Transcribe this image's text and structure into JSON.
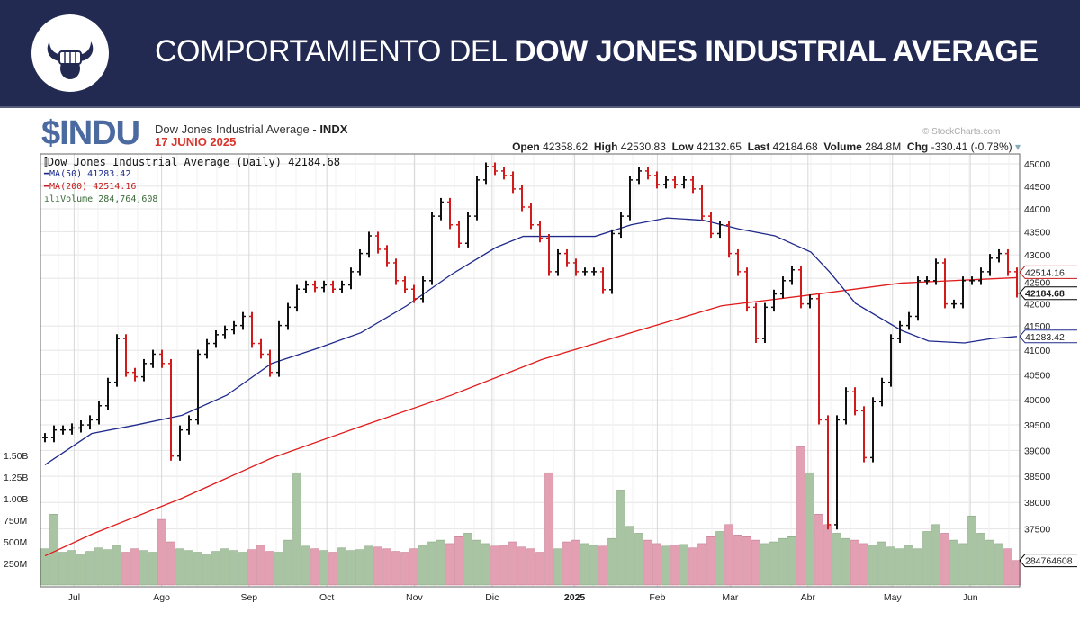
{
  "header": {
    "title_light": "COMPORTAMIENTO DEL ",
    "title_bold": "DOW JONES INDUSTRIAL AVERAGE"
  },
  "symbol": "$INDU",
  "name": "Dow Jones Industrial Average - ",
  "exchange": "INDX",
  "date": "17 JUNIO 2025",
  "copyright": "© StockCharts.com",
  "quote": {
    "open_label": "Open",
    "open": "42358.62",
    "high_label": "High",
    "high": "42530.83",
    "low_label": "Low",
    "low": "42132.65",
    "last_label": "Last",
    "last": "42184.68",
    "volume_label": "Volume",
    "volume": "284.8M",
    "chg_label": "Chg",
    "chg": "-330.41 (-0.78%)"
  },
  "legend": {
    "main": "Dow Jones Industrial Average (Daily) 42184.68",
    "ma50": "MA(50) 41283.42",
    "ma200": "MA(200) 42514.16",
    "volume": "Volume 284,764,608"
  },
  "colors": {
    "header": "#232a52",
    "up": "#111111",
    "down": "#d11a1a",
    "ma50": "#1f2a8c",
    "ma200": "#e01b1b",
    "vol_up": "#a9c4a2",
    "vol_down": "#e3a0b3"
  },
  "chart_data": {
    "type": "ohlc",
    "title": "Dow Jones Industrial Average (Daily)",
    "y_scale": "log",
    "ylim": [
      37500,
      45000
    ],
    "y_ticks": [
      45000,
      44500,
      44000,
      43500,
      43000,
      42500,
      42000,
      41500,
      41000,
      40500,
      40000,
      39500,
      39000,
      38500,
      38000,
      37500
    ],
    "y_tick_labels": [
      "45000",
      "44500",
      "44000",
      "43500",
      "43000",
      "42500",
      "42000",
      "41500",
      "41000",
      "40500",
      "40000",
      "39500",
      "39000",
      "38500",
      "38000",
      "37500"
    ],
    "x_tick_labels": [
      "Jul",
      "Ago",
      "Sep",
      "Oct",
      "Nov",
      "Dic",
      "2025",
      "Feb",
      "Mar",
      "Abr",
      "May",
      "Jun"
    ],
    "x_tick_positions": [
      0.03,
      0.12,
      0.21,
      0.29,
      0.38,
      0.46,
      0.545,
      0.63,
      0.705,
      0.785,
      0.872,
      0.952
    ],
    "close": [
      39250,
      39400,
      39400,
      39440,
      39500,
      39600,
      39880,
      40350,
      41240,
      40550,
      40460,
      40730,
      40920,
      40730,
      38890,
      39400,
      39600,
      40920,
      41140,
      41320,
      41420,
      41510,
      41700,
      41140,
      40920,
      40550,
      41510,
      41890,
      42270,
      42360,
      42300,
      42360,
      42270,
      42360,
      42640,
      43030,
      43410,
      43120,
      42830,
      42450,
      42270,
      42070,
      42450,
      43840,
      44150,
      43650,
      43250,
      43840,
      44640,
      44940,
      44840,
      44740,
      44440,
      44040,
      43650,
      43360,
      42640,
      43030,
      42830,
      42640,
      42640,
      42640,
      42260,
      43460,
      43840,
      44640,
      44840,
      44740,
      44540,
      44640,
      44540,
      44640,
      44440,
      43840,
      43460,
      43650,
      43030,
      42640,
      41890,
      41240,
      41890,
      42170,
      42450,
      42680,
      41960,
      42070,
      39600,
      37580,
      39600,
      40160,
      39780,
      38860,
      39960,
      40350,
      41240,
      41510,
      41700,
      42450,
      42450,
      42830,
      41960,
      41960,
      42450,
      42450,
      42640,
      42930,
      43030,
      42640,
      42185
    ],
    "ma50": [
      38720,
      39330,
      39500,
      39690,
      40090,
      40730,
      41030,
      41360,
      41920,
      42580,
      43160,
      43400,
      43400,
      43400,
      43650,
      43800,
      43750,
      43560,
      43410,
      43060,
      42640,
      41970,
      41410,
      41190,
      41150,
      41240,
      41283.42
    ],
    "ma50_pos": [
      0,
      0.048,
      0.094,
      0.141,
      0.187,
      0.233,
      0.279,
      0.325,
      0.372,
      0.418,
      0.464,
      0.492,
      0.529,
      0.566,
      0.603,
      0.64,
      0.677,
      0.714,
      0.751,
      0.788,
      0.807,
      0.834,
      0.881,
      0.909,
      0.946,
      0.974,
      1
    ],
    "ma200": [
      37000,
      37400,
      38080,
      38850,
      39470,
      40090,
      40810,
      41360,
      41920,
      42150,
      42400,
      42514.16
    ],
    "ma200_pos": [
      0,
      0.048,
      0.141,
      0.233,
      0.325,
      0.418,
      0.511,
      0.603,
      0.696,
      0.788,
      0.881,
      1
    ],
    "volume_millions": [
      420,
      820,
      380,
      400,
      360,
      390,
      430,
      410,
      460,
      380,
      420,
      400,
      380,
      760,
      500,
      420,
      400,
      380,
      360,
      390,
      420,
      400,
      380,
      410,
      460,
      390,
      380,
      520,
      1300,
      450,
      420,
      400,
      380,
      430,
      400,
      410,
      450,
      440,
      420,
      390,
      380,
      420,
      460,
      500,
      520,
      480,
      560,
      600,
      520,
      480,
      450,
      460,
      500,
      440,
      420,
      380,
      1300,
      420,
      500,
      520,
      480,
      460,
      450,
      540,
      1100,
      680,
      600,
      520,
      480,
      450,
      460,
      470,
      430,
      480,
      560,
      620,
      700,
      580,
      560,
      520,
      480,
      500,
      540,
      560,
      1600,
      1300,
      820,
      700,
      600,
      540,
      520,
      480,
      460,
      500,
      440,
      420,
      460,
      420,
      620,
      700,
      600,
      520,
      480,
      800,
      600,
      520,
      480,
      420,
      285
    ],
    "volume_ticks": [
      "1.50B",
      "1.25B",
      "1.00B",
      "750M",
      "500M",
      "250M"
    ],
    "volume_tick_values": [
      1500,
      1250,
      1000,
      750,
      500,
      250
    ],
    "last_labels": {
      "ma200": "42514.16",
      "last": "42184.68",
      "ma50": "41283.42",
      "volume": "284764608"
    }
  }
}
